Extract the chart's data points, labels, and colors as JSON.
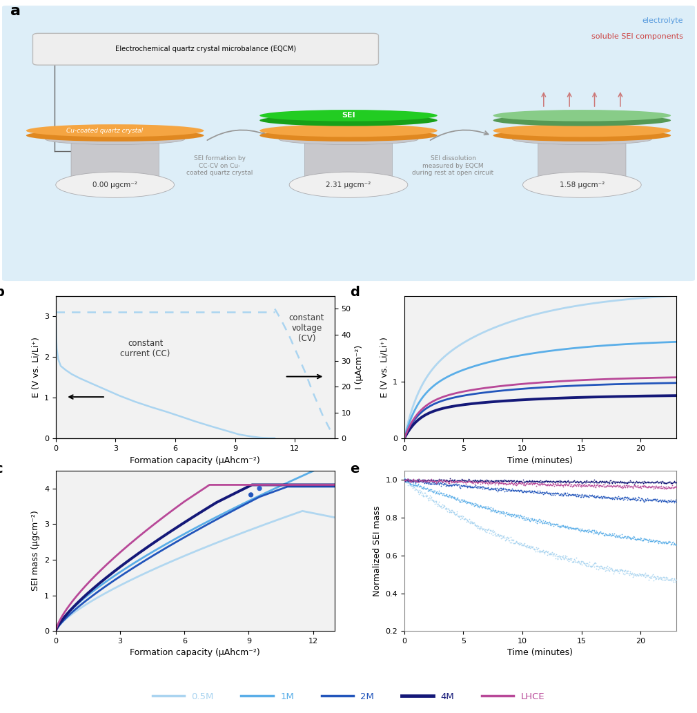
{
  "colors": {
    "c05M": "#aad4f0",
    "c1M": "#5aaee8",
    "c2M": "#2255bb",
    "c4M": "#141878",
    "cLHCE": "#b84898",
    "orange_top": "#f5a542",
    "orange_side": "#e08820",
    "green_bright": "#22cc22",
    "green_side": "#18a018",
    "green_faded": "#88cc88",
    "green_faded_side": "#559955",
    "bg_blue": "#ddeef8",
    "gray_stand": "#c8c8cc",
    "gray_stand_dark": "#aaaaae",
    "gray_stand_neck": "#d8d8dc",
    "white_bowl": "#f0f0f0",
    "arrow_gray": "#999999"
  },
  "panel_b": {
    "xlim": [
      0,
      14
    ],
    "ylim_left": [
      0,
      3.5
    ],
    "ylim_right": [
      0,
      55
    ],
    "xlabel": "Formation capacity (μAhcm⁻²)",
    "ylabel_left": "E (V vs. Li/Li⁺)",
    "ylabel_right": "I (μAcm⁻²)",
    "xticks": [
      0,
      3,
      6,
      9,
      12
    ],
    "yticks_left": [
      0,
      1,
      2,
      3
    ],
    "yticks_right": [
      0,
      10,
      20,
      30,
      40,
      50
    ]
  },
  "panel_c": {
    "xlim": [
      0,
      13
    ],
    "ylim": [
      0,
      4.5
    ],
    "xlabel": "Formation capacity (μAhcm⁻²)",
    "ylabel": "SEI mass (μgcm⁻²)",
    "xticks": [
      0,
      3,
      6,
      9,
      12
    ],
    "yticks": [
      0,
      1,
      2,
      3,
      4
    ]
  },
  "panel_d": {
    "xlim": [
      0,
      23
    ],
    "ylim": [
      0,
      2.5
    ],
    "xlabel": "Time (minutes)",
    "ylabel": "E (V vs. Li/Li⁺)",
    "xticks": [
      0,
      5,
      10,
      15,
      20
    ],
    "yticks": [
      0,
      1
    ]
  },
  "panel_e": {
    "xlim": [
      0,
      23
    ],
    "ylim": [
      0.2,
      1.05
    ],
    "xlabel": "Time (minutes)",
    "ylabel": "Normalized SEI mass",
    "xticks": [
      0,
      5,
      10,
      15,
      20
    ],
    "yticks": [
      0.2,
      0.4,
      0.6,
      0.8,
      1.0
    ]
  },
  "legend": {
    "labels": [
      "0.5M",
      "1M",
      "2M",
      "4M",
      "LHCE"
    ],
    "colors": [
      "#aad4f0",
      "#5aaee8",
      "#2255bb",
      "#141878",
      "#b84898"
    ],
    "linewidths": [
      2.5,
      2.5,
      2.5,
      3.5,
      2.5
    ]
  }
}
